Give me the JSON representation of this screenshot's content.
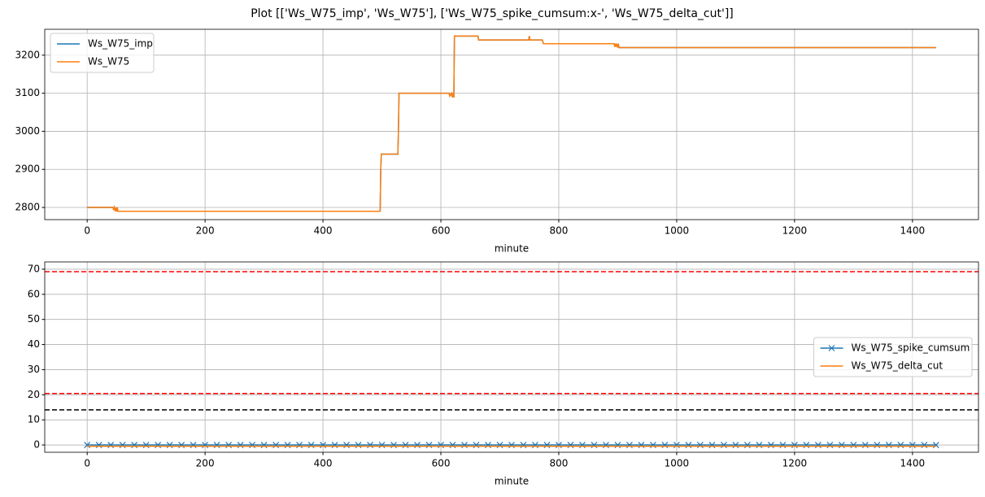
{
  "title": "Plot [['Ws_W75_imp', 'Ws_W75'], ['Ws_W75_spike_cumsum:x-', 'Ws_W75_delta_cut']]",
  "chart_data": [
    {
      "type": "line",
      "xlabel": "minute",
      "x": [
        0,
        44,
        45,
        46,
        48,
        49,
        50,
        51,
        52,
        497,
        498,
        499,
        527,
        528,
        529,
        614,
        615,
        618,
        619,
        620,
        621,
        622,
        623,
        663,
        664,
        665,
        749,
        750,
        751,
        772,
        773,
        774,
        894,
        895,
        896,
        897,
        898,
        900,
        901,
        902,
        903,
        1440
      ],
      "series": [
        {
          "name": "Ws_W75_imp",
          "color": "#1f77b4",
          "values": [
            2800,
            2800,
            2793,
            2800,
            2790,
            2800,
            2790,
            2800,
            2790,
            2790,
            2900,
            2940,
            2940,
            3000,
            3100,
            3100,
            3093,
            3100,
            3090,
            3100,
            3090,
            3090,
            3250,
            3250,
            3240,
            3240,
            3240,
            3250,
            3240,
            3240,
            3235,
            3230,
            3230,
            3222,
            3230,
            3222,
            3230,
            3220,
            3230,
            3220,
            3220,
            3220
          ]
        },
        {
          "name": "Ws_W75",
          "color": "#ff7f0e",
          "values": [
            2800,
            2800,
            2793,
            2800,
            2790,
            2800,
            2790,
            2800,
            2790,
            2790,
            2900,
            2940,
            2940,
            3000,
            3100,
            3100,
            3093,
            3100,
            3090,
            3100,
            3090,
            3090,
            3250,
            3250,
            3240,
            3240,
            3240,
            3250,
            3240,
            3240,
            3235,
            3230,
            3230,
            3222,
            3230,
            3222,
            3230,
            3220,
            3230,
            3220,
            3220,
            3220
          ]
        }
      ],
      "xlim": [
        -72,
        1512
      ],
      "ylim": [
        2768,
        3268
      ],
      "xticks": [
        0,
        200,
        400,
        600,
        800,
        1000,
        1200,
        1400
      ],
      "yticks": [
        2800,
        2900,
        3000,
        3100,
        3200
      ],
      "grid": true,
      "legend": "upper-left"
    },
    {
      "type": "line",
      "xlabel": "minute",
      "x": [
        0,
        20,
        40,
        60,
        80,
        100,
        120,
        140,
        160,
        180,
        200,
        220,
        240,
        260,
        280,
        300,
        320,
        340,
        360,
        380,
        400,
        420,
        440,
        460,
        480,
        500,
        520,
        540,
        560,
        580,
        600,
        620,
        640,
        660,
        680,
        700,
        720,
        740,
        760,
        780,
        800,
        820,
        840,
        860,
        880,
        900,
        920,
        940,
        960,
        980,
        1000,
        1020,
        1040,
        1060,
        1080,
        1100,
        1120,
        1140,
        1160,
        1180,
        1200,
        1220,
        1240,
        1260,
        1280,
        1300,
        1320,
        1340,
        1360,
        1380,
        1400,
        1420,
        1440
      ],
      "series": [
        {
          "name": "Ws_W75_spike_cumsum",
          "color": "#1f77b4",
          "marker": "x",
          "values": [
            0,
            0,
            0,
            0,
            0,
            0,
            0,
            0,
            0,
            0,
            0,
            0,
            0,
            0,
            0,
            0,
            0,
            0,
            0,
            0,
            0,
            0,
            0,
            0,
            0,
            0,
            0,
            0,
            0,
            0,
            0,
            0,
            0,
            0,
            0,
            0,
            0,
            0,
            0,
            0,
            0,
            0,
            0,
            0,
            0,
            0,
            0,
            0,
            0,
            0,
            0,
            0,
            0,
            0,
            0,
            0,
            0,
            0,
            0,
            0,
            0,
            0,
            0,
            0,
            0,
            0,
            0,
            0,
            0,
            0,
            0,
            0,
            0
          ]
        },
        {
          "name": "Ws_W75_delta_cut",
          "color": "#ff7f0e",
          "values": [
            -0.5,
            -0.5,
            -0.5,
            -0.5,
            -0.5,
            -0.5,
            -0.5,
            -0.5,
            -0.5,
            -0.5,
            -0.5,
            -0.5,
            -0.5,
            -0.5,
            -0.5,
            -0.5,
            -0.5,
            -0.5,
            -0.5,
            -0.5,
            -0.5,
            -0.5,
            -0.5,
            -0.5,
            -0.5,
            -0.5,
            -0.5,
            -0.5,
            -0.5,
            -0.5,
            -0.5,
            -0.5,
            -0.5,
            -0.5,
            -0.5,
            -0.5,
            -0.5,
            -0.5,
            -0.5,
            -0.5,
            -0.5,
            -0.5,
            -0.5,
            -0.5,
            -0.5,
            -0.5,
            -0.5,
            -0.5,
            -0.5,
            -0.5,
            -0.5,
            -0.5,
            -0.5,
            -0.5,
            -0.5,
            -0.5,
            -0.5,
            -0.5,
            -0.5,
            -0.5,
            -0.5,
            -0.5,
            -0.5,
            -0.5,
            -0.5,
            -0.5,
            -0.5,
            -0.5,
            -0.5,
            -0.5,
            -0.5,
            -0.5,
            -0.5
          ]
        }
      ],
      "hlines": [
        {
          "value": 69,
          "color": "red"
        },
        {
          "value": 20.5,
          "color": "red"
        },
        {
          "value": 14,
          "color": "black"
        }
      ],
      "xlim": [
        -72,
        1512
      ],
      "ylim": [
        -2.9,
        72.9
      ],
      "xticks": [
        0,
        200,
        400,
        600,
        800,
        1000,
        1200,
        1400
      ],
      "yticks": [
        0,
        10,
        20,
        30,
        40,
        50,
        60,
        70
      ],
      "grid": true,
      "legend": "center-right"
    }
  ]
}
